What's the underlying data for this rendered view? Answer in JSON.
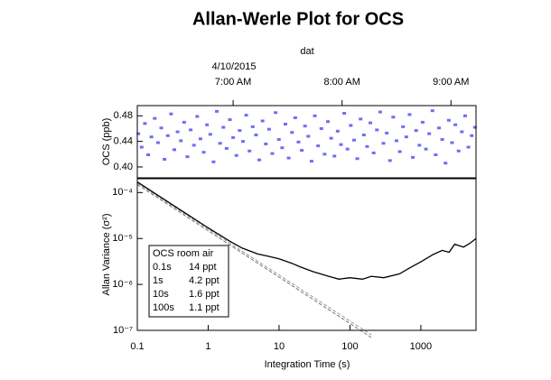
{
  "chart_data": [
    {
      "type": "scatter",
      "title": "Allan-Werle Plot for OCS",
      "x_axis_label": "dat",
      "date_label": "4/10/2015",
      "y_axis_label": "OCS (ppb)",
      "color": "#6e6ef2",
      "xlim": [
        6.12,
        9.23
      ],
      "xticks": [
        {
          "value": 7,
          "label": "7:00 AM"
        },
        {
          "value": 8,
          "label": "8:00 AM"
        },
        {
          "value": 9,
          "label": "9:00 AM"
        }
      ],
      "ylim": [
        0.383,
        0.496
      ],
      "yticks": [
        {
          "value": 0.4,
          "label": "0.40"
        },
        0.44,
        0.48
      ],
      "x": [
        6.13,
        6.16,
        6.19,
        6.22,
        6.25,
        6.28,
        6.31,
        6.34,
        6.37,
        6.4,
        6.43,
        6.46,
        6.49,
        6.52,
        6.55,
        6.58,
        6.61,
        6.64,
        6.67,
        6.7,
        6.73,
        6.76,
        6.79,
        6.82,
        6.85,
        6.88,
        6.91,
        6.94,
        6.97,
        7.0,
        7.03,
        7.06,
        7.09,
        7.12,
        7.15,
        7.18,
        7.21,
        7.24,
        7.27,
        7.3,
        7.33,
        7.36,
        7.39,
        7.42,
        7.45,
        7.48,
        7.51,
        7.54,
        7.57,
        7.6,
        7.63,
        7.66,
        7.69,
        7.72,
        7.75,
        7.78,
        7.81,
        7.84,
        7.87,
        7.9,
        7.93,
        7.96,
        7.99,
        8.02,
        8.05,
        8.08,
        8.11,
        8.14,
        8.17,
        8.2,
        8.23,
        8.26,
        8.29,
        8.32,
        8.35,
        8.38,
        8.41,
        8.44,
        8.47,
        8.5,
        8.53,
        8.56,
        8.59,
        8.62,
        8.65,
        8.68,
        8.71,
        8.74,
        8.77,
        8.8,
        8.83,
        8.86,
        8.89,
        8.92,
        8.95,
        8.98,
        9.01,
        9.04,
        9.07,
        9.1,
        9.13,
        9.16,
        9.19,
        9.22
      ],
      "values": [
        0.452,
        0.431,
        0.468,
        0.419,
        0.447,
        0.476,
        0.438,
        0.461,
        0.412,
        0.449,
        0.483,
        0.427,
        0.455,
        0.441,
        0.47,
        0.416,
        0.458,
        0.434,
        0.479,
        0.444,
        0.423,
        0.466,
        0.451,
        0.408,
        0.487,
        0.437,
        0.462,
        0.429,
        0.474,
        0.446,
        0.418,
        0.457,
        0.44,
        0.481,
        0.425,
        0.463,
        0.45,
        0.411,
        0.472,
        0.436,
        0.459,
        0.421,
        0.485,
        0.443,
        0.43,
        0.467,
        0.414,
        0.454,
        0.477,
        0.439,
        0.426,
        0.464,
        0.448,
        0.409,
        0.48,
        0.433,
        0.46,
        0.42,
        0.471,
        0.445,
        0.417,
        0.456,
        0.435,
        0.484,
        0.428,
        0.465,
        0.442,
        0.413,
        0.475,
        0.45,
        0.432,
        0.469,
        0.422,
        0.458,
        0.486,
        0.437,
        0.453,
        0.41,
        0.478,
        0.441,
        0.424,
        0.463,
        0.447,
        0.482,
        0.415,
        0.457,
        0.434,
        0.47,
        0.428,
        0.452,
        0.488,
        0.419,
        0.461,
        0.443,
        0.406,
        0.473,
        0.438,
        0.466,
        0.425,
        0.455,
        0.48,
        0.431,
        0.449,
        0.462
      ]
    },
    {
      "type": "line",
      "log_x": true,
      "log_y": true,
      "x_axis_label": "Integration Time (s)",
      "y_axis_label": "Allan Variance (σ²)",
      "xlim": [
        0.1,
        6000
      ],
      "xticks": [
        0.1,
        1,
        10,
        100,
        1000
      ],
      "ylim": [
        1e-07,
        0.0002
      ],
      "yticks": [
        {
          "value": 1e-07,
          "label": "10⁻⁷"
        },
        {
          "value": 1e-06,
          "label": "10⁻⁶"
        },
        {
          "value": 1e-05,
          "label": "10⁻⁵"
        },
        {
          "value": 0.0001,
          "label": "10⁻⁴"
        }
      ],
      "series": [
        {
          "color": "#999999",
          "line_style": "dashed",
          "x": [
            0.1,
            200
          ],
          "values": [
            0.00016,
            8e-08
          ]
        },
        {
          "color": "#777777",
          "line_style": "dashed",
          "x": [
            0.1,
            200
          ],
          "values": [
            0.00015,
            7e-08
          ]
        },
        {
          "color": "#000000",
          "line_style": "solid",
          "x": [
            0.1,
            0.2,
            0.5,
            1,
            2,
            3,
            5,
            7,
            10,
            15,
            20,
            30,
            50,
            70,
            100,
            150,
            200,
            300,
            500,
            700,
            1000,
            1500,
            2000,
            2500,
            3000,
            4000,
            5000,
            6000
          ],
          "values": [
            0.00017,
            8.5e-05,
            3.4e-05,
            1.7e-05,
            8.8e-06,
            6.2e-06,
            4.6e-06,
            4.1e-06,
            3.6e-06,
            2.9e-06,
            2.4e-06,
            1.9e-06,
            1.5e-06,
            1.3e-06,
            1.4e-06,
            1.3e-06,
            1.5e-06,
            1.4e-06,
            1.7e-06,
            2.3e-06,
            3.1e-06,
            4.5e-06,
            5.5e-06,
            5e-06,
            7.5e-06,
            6.5e-06,
            8e-06,
            1e-05
          ]
        }
      ],
      "annotation_table": {
        "title": "OCS room air",
        "rows": [
          [
            "0.1s",
            "14 ppt"
          ],
          [
            "1s",
            "4.2 ppt"
          ],
          [
            "10s",
            "1.6 ppt"
          ],
          [
            "100s",
            "1.1 ppt"
          ]
        ]
      }
    }
  ]
}
